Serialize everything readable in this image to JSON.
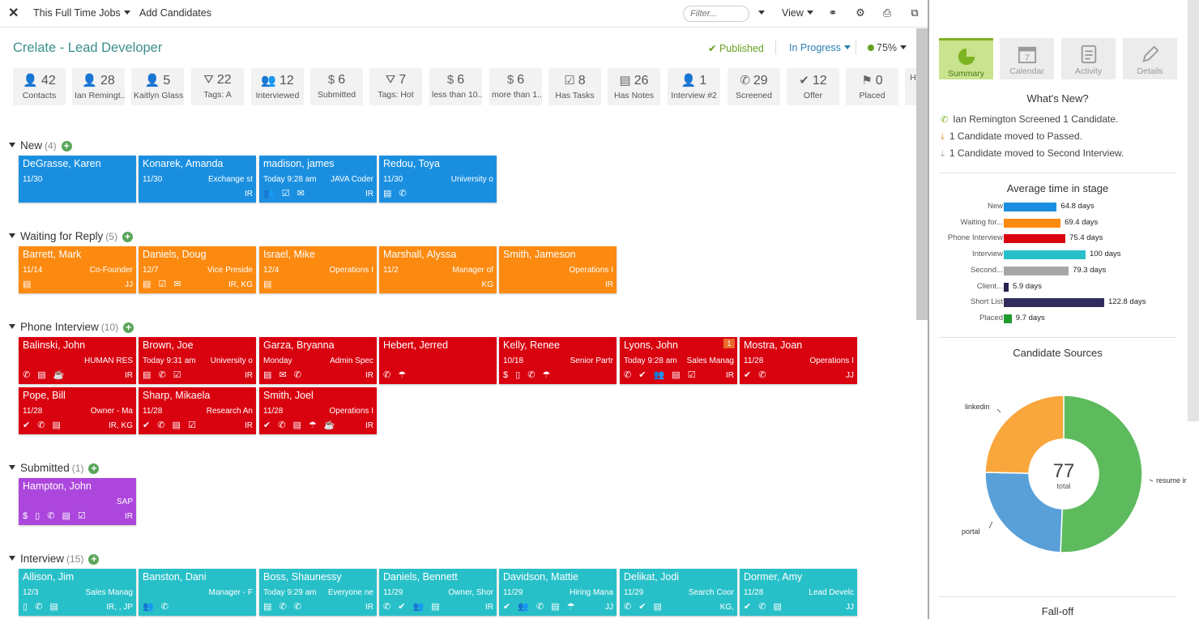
{
  "topbar": {
    "job_menu": "This Full Time Jobs",
    "add": "Add Candidates",
    "filter_placeholder": "Filter...",
    "view": "View"
  },
  "job": {
    "title": "Crelate - Lead Developer",
    "published": "Published",
    "status": "In Progress",
    "percent": "75%"
  },
  "stats": [
    {
      "icon": "person-icon",
      "n": "42",
      "l": "Contacts"
    },
    {
      "icon": "person-icon",
      "n": "28",
      "l": "Ian Remingt..."
    },
    {
      "icon": "person-icon",
      "n": "5",
      "l": "Kaitlyn Glass"
    },
    {
      "icon": "filter-icon",
      "n": "22",
      "l": "Tags: A"
    },
    {
      "icon": "people-icon",
      "n": "12",
      "l": "Interviewed"
    },
    {
      "icon": "dollar-icon",
      "n": "6",
      "l": "Submitted"
    },
    {
      "icon": "filter-icon",
      "n": "7",
      "l": "Tags: Hot"
    },
    {
      "icon": "dollar-icon",
      "n": "6",
      "l": "less than 10..."
    },
    {
      "icon": "dollar-icon",
      "n": "6",
      "l": "more than 1..."
    },
    {
      "icon": "task-icon",
      "n": "8",
      "l": "Has Tasks"
    },
    {
      "icon": "note-icon",
      "n": "26",
      "l": "Has Notes"
    },
    {
      "icon": "person-icon",
      "n": "1",
      "l": "Interview #2"
    },
    {
      "icon": "phone-icon",
      "n": "29",
      "l": "Screened"
    },
    {
      "icon": "check-icon",
      "n": "12",
      "l": "Offer"
    },
    {
      "icon": "flag-icon",
      "n": "0",
      "l": "Placed"
    },
    {
      "icon": "",
      "n": "",
      "l": "H"
    }
  ],
  "sections": [
    {
      "name": "New",
      "count": "(4)",
      "cards": [
        {
          "name": "DeGrasse, Karen",
          "date": "11/30",
          "role": "",
          "ini": "",
          "icons": ""
        },
        {
          "name": "Konarek, Amanda",
          "date": "11/30",
          "role": "Exchange st",
          "ini": "IR",
          "icons": ""
        },
        {
          "name": "madison, james",
          "date": "Today 9:28 am",
          "role": "JAVA Coder",
          "ini": "IR",
          "icons": "👥 ☑ ✉"
        },
        {
          "name": "Redou, Toya",
          "date": "11/30",
          "role": "University o",
          "ini": "",
          "icons": "▤ ✆"
        }
      ]
    },
    {
      "name": "Waiting for Reply",
      "count": "(5)",
      "cards": [
        {
          "name": "Barrett, Mark",
          "date": "11/14",
          "role": "Co-Founder",
          "ini": "JJ",
          "icons": "▤"
        },
        {
          "name": "Daniels, Doug",
          "date": "12/7",
          "role": "Vice Preside",
          "ini": "IR, KG",
          "icons": "▤ ☑ ✉"
        },
        {
          "name": "Israel, Mike",
          "date": "12/4",
          "role": "Operations I",
          "ini": "",
          "icons": "▤"
        },
        {
          "name": "Marshall, Alyssa",
          "date": "11/2",
          "role": "Manager of",
          "ini": "KG",
          "icons": ""
        },
        {
          "name": "Smith, Jameson",
          "date": "",
          "role": "Operations I",
          "ini": "IR",
          "icons": ""
        }
      ]
    },
    {
      "name": "Phone Interview",
      "count": "(10)",
      "cards": [
        {
          "name": "Balinski, John",
          "date": "",
          "role": "HUMAN RES",
          "ini": "IR",
          "icons": "✆ ▤ ☕"
        },
        {
          "name": "Brown, Joe",
          "date": "Today 9:31 am",
          "role": "University o",
          "ini": "IR",
          "icons": "▤ ✆ ☑"
        },
        {
          "name": "Garza, Bryanna",
          "date": "Monday",
          "role": "Admin Spec",
          "ini": "IR",
          "icons": "▤ ✉ ✆"
        },
        {
          "name": "Hebert, Jerred",
          "date": "",
          "role": "",
          "ini": "",
          "icons": "✆ ☂"
        },
        {
          "name": "Kelly, Renee",
          "date": "10/18",
          "role": "Senior Partr",
          "ini": "",
          "icons": "$ ▯ ✆ ☂"
        },
        {
          "name": "Lyons, John",
          "date": "Today 9:28 am",
          "role": "Sales Manag",
          "ini": "IR",
          "icons": "✆ ✔ 👥 ▤ ☑",
          "badge": "1"
        },
        {
          "name": "Mostra, Joan",
          "date": "11/28",
          "role": "Operations I",
          "ini": "JJ",
          "icons": "✔ ✆"
        },
        {
          "name": "Pope, Bill",
          "date": "11/28",
          "role": "Owner - Ma",
          "ini": "IR, KG",
          "icons": "✔ ✆ ▤"
        },
        {
          "name": "Sharp, Mikaela",
          "date": "11/28",
          "role": "Research An",
          "ini": "IR",
          "icons": "✔ ✆ ▤ ☑"
        },
        {
          "name": "Smith, Joel",
          "date": "11/28",
          "role": "Operations I",
          "ini": "IR",
          "icons": "✔ ✆ ▤ ☂ ☕"
        }
      ]
    },
    {
      "name": "Submitted",
      "count": "(1)",
      "cards": [
        {
          "name": "Hampton, John",
          "date": "",
          "role": "SAP",
          "ini": "IR",
          "icons": "$ ▯ ✆ ▤ ☑"
        }
      ]
    },
    {
      "name": "Interview",
      "count": "(15)",
      "cards": [
        {
          "name": "Allison, Jim",
          "date": "12/3",
          "role": "Sales Manag",
          "ini": "IR, , JP",
          "icons": "▯ ✆ ▤"
        },
        {
          "name": "Banston, Dani",
          "date": "",
          "role": "Manager - F",
          "ini": "",
          "icons": "👥 ✆"
        },
        {
          "name": "Boss, Shaunessy",
          "date": "Today 9:29 am",
          "role": "Everyone ne",
          "ini": "IR",
          "icons": "▤ ✆ ✆"
        },
        {
          "name": "Daniels, Bennett",
          "date": "11/29",
          "role": "Owner, Shor",
          "ini": "IR",
          "icons": "✆ ✔ 👥 ▤"
        },
        {
          "name": "Davidson, Mattie",
          "date": "11/29",
          "role": "Hiring Mana",
          "ini": "JJ",
          "icons": "✔ 👥 ✆ ▤ ☂"
        },
        {
          "name": "Delikat, Jodi",
          "date": "11/29",
          "role": "Search Coor",
          "ini": "KG,",
          "icons": "✆ ✔ ▤"
        },
        {
          "name": "Dormer, Amy",
          "date": "11/28",
          "role": "Lead Develc",
          "ini": "JJ",
          "icons": "✔ ✆ ▤"
        }
      ]
    }
  ],
  "right": {
    "tabs": [
      {
        "l": "Summary",
        "icon": "pie-icon"
      },
      {
        "l": "Calendar",
        "icon": "calendar-icon"
      },
      {
        "l": "Activity",
        "icon": "activity-icon"
      },
      {
        "l": "Details",
        "icon": "pencil-icon"
      }
    ],
    "whats_new_title": "What's New?",
    "news": [
      "Ian Remington Screened 1 Candidate.",
      "1 Candidate moved to Passed.",
      "1 Candidate moved to Second Interview."
    ],
    "avg_title": "Average time in stage",
    "sources_title": "Candidate Sources",
    "falloff_title": "Fall-off",
    "donut_total": "77",
    "donut_total_label": "total"
  },
  "chart_data": [
    {
      "type": "bar",
      "title": "Average time in stage",
      "categories": [
        "New",
        "Waiting for...",
        "Phone Interview",
        "Interview",
        "Second...",
        "Client...",
        "Short List",
        "Placed"
      ],
      "values": [
        64.8,
        69.4,
        75.4,
        100,
        79.3,
        5.9,
        122.8,
        9.7
      ],
      "labels": [
        "64.8 days",
        "69.4 days",
        "75.4 days",
        "100 days",
        "79.3 days",
        "5.9 days",
        "122.8 days",
        "9.7 days"
      ],
      "colors": [
        "#1a8fe0",
        "#fc8a10",
        "#d9020f",
        "#28c0c8",
        "#a6a6a6",
        "#2b1f4f",
        "#302c5c",
        "#1f9a2f"
      ]
    },
    {
      "type": "pie",
      "title": "Candidate Sources",
      "categories": [
        "resume ir",
        "portal",
        "linkedin"
      ],
      "values": [
        39,
        19,
        19
      ],
      "colors": [
        "#5dbb5d",
        "#5aa0d8",
        "#f9a63c"
      ]
    }
  ]
}
